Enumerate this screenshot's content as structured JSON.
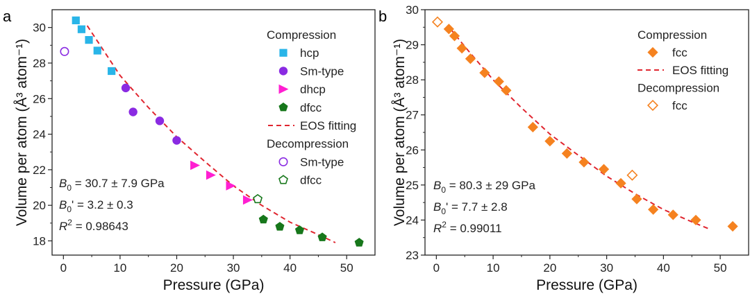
{
  "chart_data": [
    {
      "type": "scatter",
      "panel_label": "a",
      "xlabel": "Pressure (GPa)",
      "ylabel": "Volume per atom (Å³ atom⁻¹)",
      "xlim": [
        -2,
        55
      ],
      "ylim": [
        17.2,
        31
      ],
      "xticks": [
        0,
        10,
        20,
        30,
        40,
        50
      ],
      "yticks": [
        18,
        20,
        22,
        24,
        26,
        28,
        30
      ],
      "legend_headings": [
        "Compression",
        "Decompression"
      ],
      "legend_position": "top-right",
      "series": [
        {
          "name": "hcp",
          "group": "Compression",
          "marker": "square",
          "filled": true,
          "color": "#29b5e8",
          "points": [
            [
              2.2,
              30.4
            ],
            [
              3.2,
              29.9
            ],
            [
              4.5,
              29.3
            ],
            [
              6.0,
              28.7
            ],
            [
              8.5,
              27.55
            ]
          ]
        },
        {
          "name": "Sm-type",
          "group": "Compression",
          "marker": "circle",
          "filled": true,
          "color": "#8a2be2",
          "points": [
            [
              11.0,
              26.6
            ],
            [
              12.3,
              25.25
            ],
            [
              17.0,
              24.75
            ],
            [
              20.0,
              23.65
            ]
          ]
        },
        {
          "name": "dhcp",
          "group": "Compression",
          "marker": "triangle-right",
          "filled": true,
          "color": "#ff1fd1",
          "points": [
            [
              23.2,
              22.25
            ],
            [
              26.0,
              21.7
            ],
            [
              29.5,
              21.1
            ],
            [
              32.5,
              20.3
            ]
          ]
        },
        {
          "name": "dfcc",
          "group": "Compression",
          "marker": "pentagon",
          "filled": true,
          "color": "#17771b",
          "points": [
            [
              35.3,
              19.2
            ],
            [
              38.2,
              18.8
            ],
            [
              41.7,
              18.6
            ],
            [
              45.7,
              18.2
            ],
            [
              52.2,
              17.9
            ]
          ]
        },
        {
          "name": "EOS fitting",
          "group": "Compression",
          "marker": "dashed-line",
          "color": "#e0252f",
          "points": [
            [
              4.2,
              30.1
            ],
            [
              10,
              27.3
            ],
            [
              15,
              25.5
            ],
            [
              20,
              23.85
            ],
            [
              25,
              22.45
            ],
            [
              30,
              21.1
            ],
            [
              35,
              20.0
            ],
            [
              40,
              19.05
            ],
            [
              45,
              18.35
            ],
            [
              48,
              17.9
            ]
          ]
        },
        {
          "name": "Sm-type",
          "group": "Decompression",
          "marker": "circle",
          "filled": false,
          "color": "#8a2be2",
          "points": [
            [
              0.2,
              28.65
            ]
          ]
        },
        {
          "name": "dfcc",
          "group": "Decompression",
          "marker": "pentagon",
          "filled": false,
          "color": "#17771b",
          "points": [
            [
              34.3,
              20.35
            ]
          ]
        }
      ],
      "annotations": {
        "b0": {
          "sym": "B",
          "sub": "0",
          "text": " = 30.7 ± 7.9 GPa"
        },
        "b0p": {
          "sym": "B",
          "sub": "0",
          "text": "' = 3.2 ± 0.3"
        },
        "r2": {
          "sym": "R",
          "sup": "2",
          "text": " = 0.98643"
        }
      }
    },
    {
      "type": "scatter",
      "panel_label": "b",
      "xlabel": "Pressure (GPa)",
      "ylabel": "Volume per atom (Å³ atom⁻¹)",
      "xlim": [
        -2,
        55
      ],
      "ylim": [
        23,
        30
      ],
      "xticks": [
        0,
        10,
        20,
        30,
        40,
        50
      ],
      "yticks": [
        23,
        24,
        25,
        26,
        27,
        28,
        29,
        30
      ],
      "legend_headings": [
        "Compression",
        "Decompression"
      ],
      "legend_position": "top-right",
      "series": [
        {
          "name": "fcc",
          "group": "Compression",
          "marker": "diamond",
          "filled": true,
          "color": "#f58220",
          "points": [
            [
              2.2,
              29.45
            ],
            [
              3.2,
              29.25
            ],
            [
              4.5,
              28.9
            ],
            [
              6.0,
              28.6
            ],
            [
              8.5,
              28.2
            ],
            [
              11.0,
              27.95
            ],
            [
              12.3,
              27.7
            ],
            [
              17.0,
              26.65
            ],
            [
              20.0,
              26.25
            ],
            [
              23.0,
              25.9
            ],
            [
              26.0,
              25.65
            ],
            [
              29.5,
              25.45
            ],
            [
              32.5,
              25.05
            ],
            [
              35.3,
              24.6
            ],
            [
              38.2,
              24.3
            ],
            [
              41.7,
              24.15
            ],
            [
              45.7,
              24.0
            ],
            [
              52.2,
              23.82
            ]
          ]
        },
        {
          "name": "EOS fitting",
          "group": "Compression",
          "marker": "dashed-line",
          "color": "#e0252f",
          "points": [
            [
              2.5,
              29.45
            ],
            [
              5,
              28.95
            ],
            [
              10,
              28.0
            ],
            [
              15,
              27.2
            ],
            [
              20,
              26.45
            ],
            [
              25,
              25.85
            ],
            [
              30,
              25.25
            ],
            [
              35,
              24.75
            ],
            [
              40,
              24.3
            ],
            [
              45,
              23.95
            ],
            [
              48,
              23.75
            ]
          ]
        },
        {
          "name": "fcc",
          "group": "Decompression",
          "marker": "diamond",
          "filled": false,
          "color": "#f58220",
          "points": [
            [
              0.2,
              29.65
            ],
            [
              34.5,
              25.28
            ]
          ]
        }
      ],
      "annotations": {
        "b0": {
          "sym": "B",
          "sub": "0",
          "text": " = 80.3 ± 29 GPa"
        },
        "b0p": {
          "sym": "B",
          "sub": "0",
          "text": "' = 7.7 ± 2.8"
        },
        "r2": {
          "sym": "R",
          "sup": "2",
          "text": " = 0.99011"
        }
      }
    }
  ]
}
